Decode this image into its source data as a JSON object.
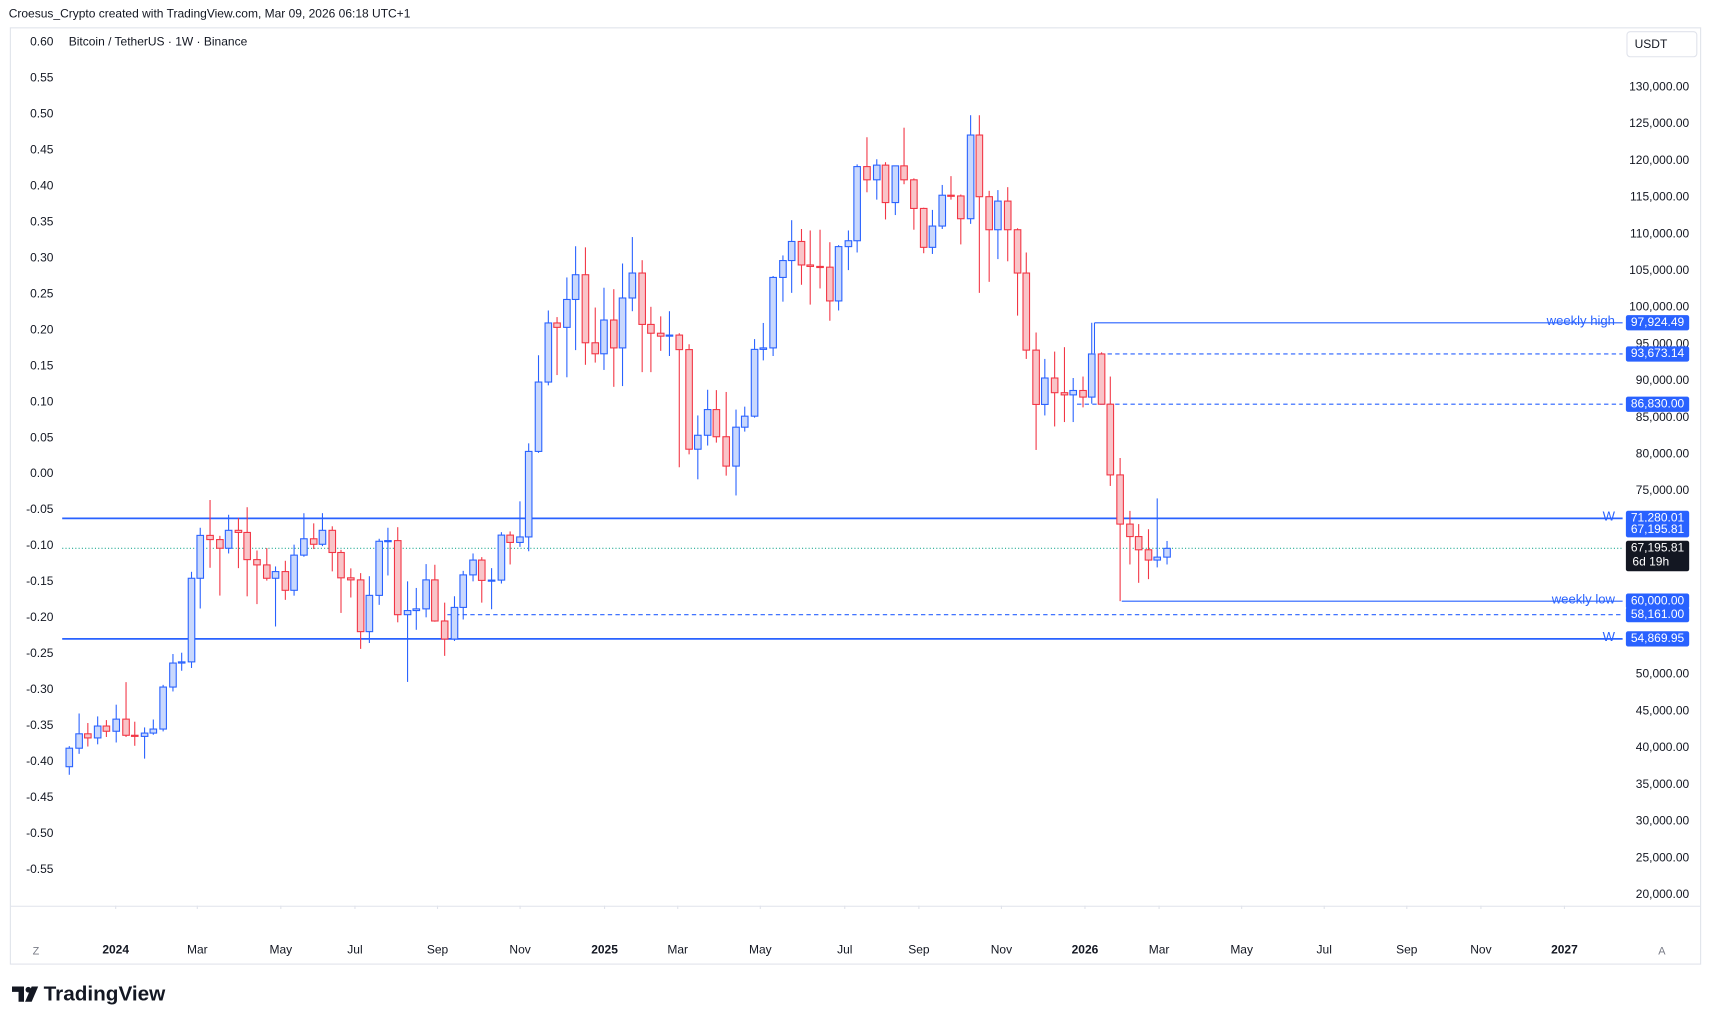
{
  "page": {
    "attribution": "Croesus_Crypto created with TradingView.com, Mar 09, 2026 06:18 UTC+1",
    "brand": "TradingView",
    "left_button": "Z",
    "right_button": "A"
  },
  "chart_data": {
    "type": "candlestick",
    "title": "Bitcoin / TetherUS · 1W · Binance",
    "currency": "USDT",
    "up_color": "#2962ff",
    "up_fill": "#c9d8fd",
    "down_color": "#f23645",
    "down_fill": "#f9c4c8",
    "grid": false,
    "categories": [
      null,
      null,
      null,
      null,
      null,
      null,
      null,
      null,
      null,
      null,
      null,
      null,
      null,
      null,
      null,
      null,
      null,
      null,
      null,
      null,
      null,
      null,
      null,
      null,
      null,
      null,
      null,
      null,
      null,
      null,
      null,
      null,
      null,
      null,
      null,
      null,
      null,
      null,
      null,
      null,
      null,
      null,
      null,
      null,
      null,
      null,
      null,
      null,
      null,
      null,
      null,
      null,
      null,
      null,
      null,
      null,
      null,
      null,
      null,
      null,
      null,
      null,
      null,
      null,
      null,
      null,
      null,
      null,
      null,
      null,
      null,
      null,
      null,
      null,
      null,
      null,
      null,
      null,
      null,
      null,
      null,
      null,
      null,
      null,
      null,
      null,
      null,
      null,
      null,
      null,
      null,
      null,
      null,
      null,
      null,
      null,
      null,
      null,
      null,
      null,
      null,
      null,
      null,
      null,
      null,
      null,
      null,
      null,
      null,
      null,
      null,
      null,
      null,
      null,
      null,
      null,
      null,
      null
    ],
    "open": [
      37450,
      39970,
      41930,
      41370,
      42990,
      42280,
      43930,
      41730,
      41580,
      42030,
      42580,
      48300,
      51570,
      51730,
      63120,
      68960,
      68390,
      67210,
      69650,
      69360,
      65660,
      64940,
      63120,
      64030,
      61480,
      66270,
      68500,
      67750,
      69650,
      66630,
      63180,
      62900,
      55850,
      60790,
      68160,
      68250,
      58160,
      58720,
      58950,
      62900,
      57300,
      54840,
      59150,
      63580,
      65600,
      62830,
      62870,
      69000,
      68000,
      68750,
      80400,
      89850,
      97900,
      97300,
      101100,
      104470,
      95200,
      93700,
      98300,
      94500,
      101300,
      104700,
      97700,
      96500,
      96100,
      96250,
      94270,
      80700,
      82600,
      86100,
      82400,
      78400,
      83700,
      85200,
      94300,
      94500,
      104100,
      106400,
      109000,
      105800,
      105600,
      105500,
      100900,
      108300,
      109100,
      119200,
      117400,
      119400,
      114300,
      119300,
      117400,
      113500,
      108200,
      111100,
      115300,
      115200,
      112100,
      123500,
      115100,
      110600,
      114500,
      110600,
      104700,
      94200,
      86800,
      90400,
      88400,
      88100,
      88700,
      87800,
      93673.14,
      86830,
      77200,
      70500,
      68800,
      67000,
      65600,
      66000
    ],
    "high": [
      40250,
      44700,
      43400,
      44300,
      43800,
      45900,
      48970,
      43580,
      42800,
      43880,
      48600,
      52800,
      52980,
      64000,
      70000,
      73780,
      68900,
      71770,
      71350,
      72800,
      66900,
      67230,
      64730,
      65500,
      67700,
      71980,
      70600,
      71990,
      70200,
      66990,
      64470,
      63820,
      63400,
      68500,
      70000,
      70080,
      62700,
      61800,
      65050,
      64960,
      59800,
      60670,
      64130,
      66500,
      66000,
      64500,
      69400,
      69500,
      73600,
      81500,
      93500,
      99600,
      98700,
      104100,
      108350,
      108200,
      100000,
      102700,
      102500,
      106000,
      109600,
      106450,
      100100,
      98800,
      99500,
      96500,
      95000,
      85300,
      88800,
      88750,
      88500,
      86100,
      86500,
      95700,
      97900,
      104300,
      107100,
      111900,
      110700,
      110500,
      110600,
      108900,
      108500,
      110500,
      119500,
      123200,
      120200,
      119800,
      119300,
      124500,
      117600,
      113600,
      113300,
      116700,
      117900,
      115400,
      126200,
      126200,
      115900,
      116000,
      116400,
      110800,
      107500,
      96600,
      93000,
      94000,
      94600,
      90400,
      90600,
      97924.49,
      93900,
      90600,
      79500,
      72300,
      70500,
      69800,
      74000,
      68200
    ],
    "low": [
      36350,
      39200,
      40200,
      40500,
      41500,
      40750,
      41500,
      40300,
      38550,
      41800,
      42260,
      47700,
      50520,
      50900,
      59000,
      64550,
      60760,
      66500,
      64500,
      60660,
      59600,
      62800,
      56550,
      60180,
      60750,
      66050,
      67100,
      67500,
      64060,
      58400,
      60500,
      53500,
      54300,
      59500,
      63500,
      57120,
      49000,
      56100,
      57800,
      57200,
      52550,
      54580,
      57500,
      62700,
      59800,
      58900,
      62400,
      65000,
      67400,
      66800,
      80200,
      89400,
      90800,
      90500,
      94200,
      92200,
      92500,
      91500,
      89200,
      89300,
      99500,
      91200,
      91200,
      94100,
      93400,
      78250,
      80000,
      76600,
      81200,
      81600,
      77100,
      74400,
      83100,
      85000,
      92800,
      93400,
      100800,
      102000,
      103100,
      100400,
      102600,
      98200,
      99600,
      105100,
      107500,
      115700,
      114700,
      112000,
      112600,
      116800,
      110600,
      107400,
      107300,
      110700,
      114700,
      108600,
      111400,
      102000,
      103500,
      106600,
      106300,
      98900,
      93000,
      80600,
      85300,
      83800,
      84400,
      84400,
      86400,
      86900,
      87000,
      75700,
      60000,
      65000,
      62500,
      63000,
      64600,
      65000
    ],
    "close": [
      39970,
      41930,
      41370,
      42990,
      42280,
      43930,
      41730,
      41580,
      42030,
      42580,
      48300,
      51570,
      51730,
      63120,
      68960,
      68390,
      67210,
      69650,
      69360,
      65660,
      64940,
      63120,
      64030,
      61480,
      66270,
      68500,
      67750,
      69650,
      66630,
      63180,
      62900,
      55850,
      60790,
      68160,
      68250,
      58160,
      58720,
      58950,
      62900,
      57300,
      54840,
      59150,
      63580,
      65600,
      62830,
      62870,
      69000,
      68000,
      68750,
      80400,
      89850,
      97900,
      97300,
      101100,
      104470,
      95200,
      93700,
      98300,
      94500,
      101300,
      104700,
      97700,
      96500,
      96100,
      96250,
      94270,
      80700,
      82600,
      86100,
      82400,
      78400,
      83700,
      85200,
      94300,
      94500,
      104100,
      106400,
      109000,
      105800,
      105600,
      105500,
      100900,
      108300,
      109100,
      119200,
      117400,
      119400,
      114300,
      119300,
      117400,
      113500,
      108200,
      111100,
      115300,
      115200,
      112100,
      123500,
      115100,
      110600,
      114500,
      110600,
      104700,
      94200,
      86800,
      90400,
      88400,
      88100,
      88700,
      87800,
      93673.14,
      86830,
      77200,
      70500,
      68800,
      67000,
      65600,
      66000,
      67195.81
    ],
    "xlim": [
      -0.7,
      165.6
    ],
    "xticks": [
      {
        "value": 5,
        "label": "2024"
      },
      {
        "value": 13.7,
        "label": "Mar"
      },
      {
        "value": 22.6,
        "label": "May"
      },
      {
        "value": 30.5,
        "label": "Jul"
      },
      {
        "value": 39.3,
        "label": "Sep"
      },
      {
        "value": 48.1,
        "label": "Nov"
      },
      {
        "value": 57.1,
        "label": "2025"
      },
      {
        "value": 64.9,
        "label": "Mar"
      },
      {
        "value": 73.7,
        "label": "May"
      },
      {
        "value": 82.7,
        "label": "Jul"
      },
      {
        "value": 90.6,
        "label": "Sep"
      },
      {
        "value": 99.4,
        "label": "Nov"
      },
      {
        "value": 108.3,
        "label": "2026"
      },
      {
        "value": 116.2,
        "label": "Mar"
      },
      {
        "value": 125,
        "label": "May"
      },
      {
        "value": 133.8,
        "label": "Jul"
      },
      {
        "value": 142.6,
        "label": "Sep"
      },
      {
        "value": 150.5,
        "label": "Nov"
      },
      {
        "value": 159.4,
        "label": "2027"
      }
    ],
    "ylim": [
      18513,
      138176
    ],
    "yticks": [
      {
        "value": 20000,
        "label": "20,000.00"
      },
      {
        "value": 25000,
        "label": "25,000.00"
      },
      {
        "value": 30000,
        "label": "30,000.00"
      },
      {
        "value": 35000,
        "label": "35,000.00"
      },
      {
        "value": 40000,
        "label": "40,000.00"
      },
      {
        "value": 45000,
        "label": "45,000.00"
      },
      {
        "value": 50000,
        "label": "50,000.00"
      },
      {
        "value": 55000,
        "label": "55,000.00"
      },
      {
        "value": 60000,
        "label": "60,000.00"
      },
      {
        "value": 65000,
        "label": "65,000.00"
      },
      {
        "value": 70000,
        "label": "70,000.00"
      },
      {
        "value": 75000,
        "label": "75,000.00"
      },
      {
        "value": 80000,
        "label": "80,000.00"
      },
      {
        "value": 85000,
        "label": "85,000.00"
      },
      {
        "value": 90000,
        "label": "90,000.00"
      },
      {
        "value": 95000,
        "label": "95,000.00"
      },
      {
        "value": 100000,
        "label": "100,000.00"
      },
      {
        "value": 105000,
        "label": "105,000.00"
      },
      {
        "value": 110000,
        "label": "110,000.00"
      },
      {
        "value": 115000,
        "label": "115,000.00"
      },
      {
        "value": 120000,
        "label": "120,000.00"
      },
      {
        "value": 125000,
        "label": "125,000.00"
      },
      {
        "value": 130000,
        "label": "130,000.00"
      }
    ],
    "y2lim": [
      -0.6,
      0.621
    ],
    "y2ticks": [
      {
        "value": 0.6,
        "label": "0.60"
      },
      {
        "value": 0.55,
        "label": "0.55"
      },
      {
        "value": 0.5,
        "label": "0.50"
      },
      {
        "value": 0.45,
        "label": "0.45"
      },
      {
        "value": 0.4,
        "label": "0.40"
      },
      {
        "value": 0.35,
        "label": "0.35"
      },
      {
        "value": 0.3,
        "label": "0.30"
      },
      {
        "value": 0.25,
        "label": "0.25"
      },
      {
        "value": 0.2,
        "label": "0.20"
      },
      {
        "value": 0.15,
        "label": "0.15"
      },
      {
        "value": 0.1,
        "label": "0.10"
      },
      {
        "value": 0.05,
        "label": "0.05"
      },
      {
        "value": 0,
        "label": "0.00"
      },
      {
        "value": -0.05,
        "label": "-0.05"
      },
      {
        "value": -0.1,
        "label": "-0.10"
      },
      {
        "value": -0.15,
        "label": "-0.15"
      },
      {
        "value": -0.2,
        "label": "-0.20"
      },
      {
        "value": -0.25,
        "label": "-0.25"
      },
      {
        "value": -0.3,
        "label": "-0.30"
      },
      {
        "value": -0.35,
        "label": "-0.35"
      },
      {
        "value": -0.4,
        "label": "-0.40"
      },
      {
        "value": -0.45,
        "label": "-0.45"
      },
      {
        "value": -0.5,
        "label": "-0.50"
      },
      {
        "value": -0.55,
        "label": "-0.55"
      }
    ],
    "level_color": "#2962ff",
    "levels": [
      {
        "value": 97924.49,
        "label": "97,924.49",
        "name": "weekly high",
        "style": "solid"
      },
      {
        "value": 93673.14,
        "label": "93,673.14",
        "style": "dashed"
      },
      {
        "value": 86830,
        "label": "86,830.00",
        "style": "dashed"
      },
      {
        "value": 71280.01,
        "label": "71,280.01",
        "name": "W",
        "style": "solid"
      },
      {
        "value": 60000,
        "label": "60,000.00",
        "name": "weekly low",
        "style": "solid"
      },
      {
        "value": 58161,
        "label": "58,161.00",
        "style": "dashed"
      },
      {
        "value": 54869.95,
        "label": "54,869.95",
        "name": "W",
        "style": "solid"
      }
    ],
    "last": {
      "value": 67195.81,
      "label": "67,195.81",
      "countdown": "6d 19h",
      "color": "#22ab94"
    }
  }
}
